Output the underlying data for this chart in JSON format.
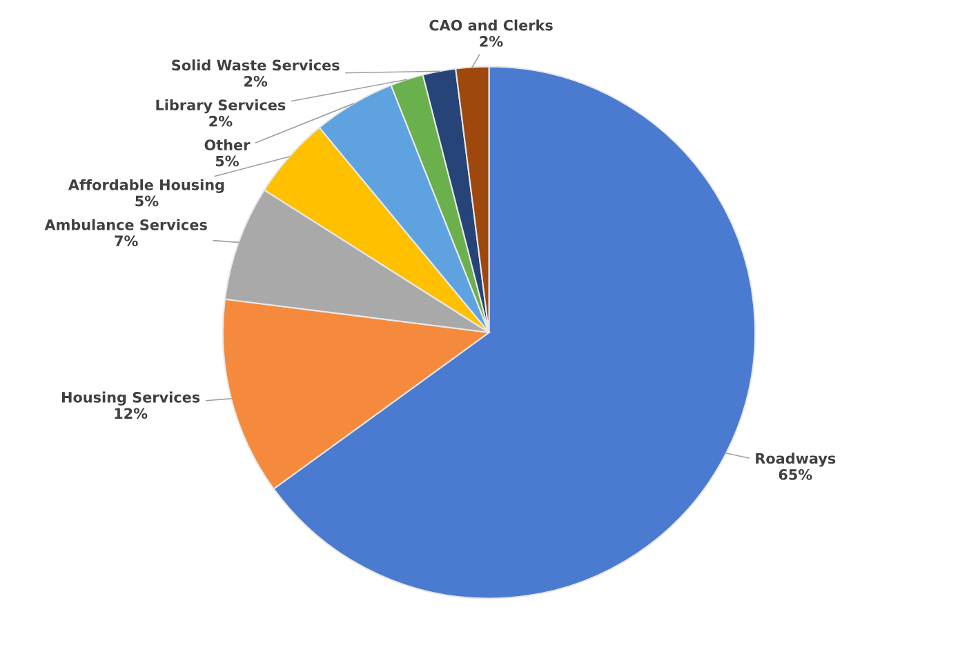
{
  "chart_data": {
    "type": "pie",
    "categories": [
      "Roadways",
      "Housing Services",
      "Ambulance Services",
      "Affordable Housing",
      "Other",
      "Library Services",
      "Solid Waste Services",
      "CAO and Clerks"
    ],
    "values": [
      65,
      12,
      7,
      5,
      5,
      2,
      2,
      2
    ],
    "value_labels": [
      "65%",
      "12%",
      "7%",
      "5%",
      "5%",
      "2%",
      "2%",
      "2%"
    ],
    "colors": [
      "#4a7bd0",
      "#f58a3c",
      "#a9a9a9",
      "#ffc000",
      "#5ea3e0",
      "#6ab04c",
      "#264478",
      "#9e480e"
    ],
    "legend": false
  }
}
